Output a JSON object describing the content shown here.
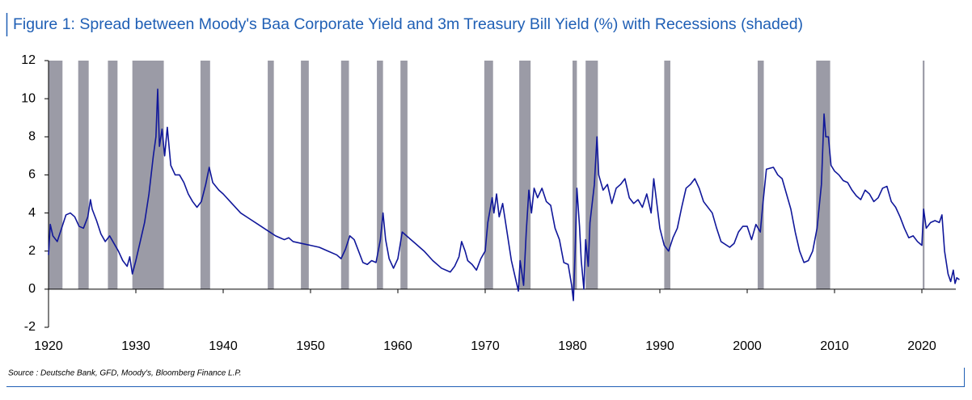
{
  "chart_data": {
    "type": "line",
    "title": "Figure 1: Spread between Moody's Baa Corporate Yield and 3m Treasury Bill Yield (%) with Recessions (shaded)",
    "source": "Source : Deutsche Bank, GFD, Moody's, Bloomberg Finance L.P.",
    "color": "#10179a",
    "recession_color": "#9b9ba6",
    "xlim": [
      1920,
      2025
    ],
    "ylim": [
      -2,
      12
    ],
    "xticks": [
      1920,
      1930,
      1940,
      1950,
      1960,
      1970,
      1980,
      1990,
      2000,
      2010,
      2020
    ],
    "yticks": [
      -2,
      0,
      2,
      4,
      6,
      8,
      10,
      12
    ],
    "recessions": [
      [
        1920.0,
        1921.6
      ],
      [
        1923.4,
        1924.6
      ],
      [
        1926.8,
        1927.9
      ],
      [
        1929.6,
        1933.2
      ],
      [
        1937.4,
        1938.5
      ],
      [
        1945.1,
        1945.8
      ],
      [
        1948.9,
        1949.8
      ],
      [
        1953.5,
        1954.4
      ],
      [
        1957.6,
        1958.3
      ],
      [
        1960.3,
        1961.1
      ],
      [
        1969.9,
        1970.9
      ],
      [
        1973.9,
        1975.2
      ],
      [
        1980.0,
        1980.5
      ],
      [
        1981.5,
        1982.9
      ],
      [
        1990.5,
        1991.2
      ],
      [
        2001.2,
        2001.9
      ],
      [
        2007.9,
        2009.5
      ],
      [
        2020.1,
        2020.3
      ]
    ],
    "x": [
      1920,
      1920.2,
      1920.5,
      1921,
      1921.5,
      1922,
      1922.5,
      1923,
      1923.5,
      1924,
      1924.5,
      1924.8,
      1925,
      1925.5,
      1926,
      1926.5,
      1927,
      1927.5,
      1928,
      1928.5,
      1929,
      1929.3,
      1929.6,
      1930,
      1930.5,
      1931,
      1931.5,
      1932,
      1932.3,
      1932.5,
      1932.7,
      1933,
      1933.3,
      1933.6,
      1934,
      1934.5,
      1935,
      1935.5,
      1936,
      1936.5,
      1937,
      1937.5,
      1938,
      1938.4,
      1938.8,
      1939.5,
      1940,
      1941,
      1942,
      1943,
      1944,
      1945,
      1946,
      1946.5,
      1947,
      1947.5,
      1948,
      1949,
      1950,
      1951,
      1952,
      1953,
      1953.5,
      1954,
      1954.5,
      1955,
      1955.5,
      1956,
      1956.5,
      1957,
      1957.5,
      1958,
      1958.3,
      1958.6,
      1959,
      1959.5,
      1960,
      1960.5,
      1961,
      1962,
      1963,
      1964,
      1965,
      1966,
      1966.5,
      1967,
      1967.3,
      1967.7,
      1968,
      1968.5,
      1969,
      1969.5,
      1970,
      1970.3,
      1970.8,
      1971,
      1971.3,
      1971.6,
      1972,
      1972.5,
      1973,
      1973.5,
      1973.8,
      1974,
      1974.4,
      1974.7,
      1975,
      1975.3,
      1975.6,
      1976,
      1976.5,
      1977,
      1977.5,
      1978,
      1978.5,
      1979,
      1979.5,
      1979.9,
      1980.1,
      1980.3,
      1980.5,
      1980.8,
      1981,
      1981.3,
      1981.5,
      1981.8,
      1982,
      1982.5,
      1982.8,
      1983,
      1983.5,
      1984,
      1984.5,
      1985,
      1985.5,
      1986,
      1986.5,
      1987,
      1987.5,
      1988,
      1988.5,
      1989,
      1989.3,
      1989.6,
      1990,
      1990.5,
      1991,
      1991.5,
      1992,
      1992.5,
      1993,
      1993.5,
      1994,
      1994.5,
      1995,
      1996,
      1996.5,
      1997,
      1998,
      1998.5,
      1999,
      1999.5,
      2000,
      2000.5,
      2001,
      2001.5,
      2001.8,
      2002.2,
      2003,
      2003.5,
      2004,
      2004.5,
      2005,
      2005.5,
      2006,
      2006.5,
      2007,
      2007.5,
      2008,
      2008.5,
      2008.8,
      2009,
      2009.3,
      2009.6,
      2010,
      2010.5,
      2011,
      2011.5,
      2012,
      2012.5,
      2013,
      2013.5,
      2014,
      2014.5,
      2015,
      2015.5,
      2016,
      2016.5,
      2017,
      2017.5,
      2018,
      2018.5,
      2019,
      2019.5,
      2020,
      2020.2,
      2020.5,
      2021,
      2021.5,
      2022,
      2022.3,
      2022.6,
      2023,
      2023.3,
      2023.6,
      2023.8,
      2024,
      2024.3
    ],
    "values": [
      1.8,
      3.4,
      2.8,
      2.5,
      3.2,
      3.9,
      4.0,
      3.8,
      3.3,
      3.2,
      3.8,
      4.7,
      4.2,
      3.6,
      2.9,
      2.5,
      2.8,
      2.4,
      2.0,
      1.5,
      1.2,
      1.7,
      0.8,
      1.5,
      2.5,
      3.5,
      5.0,
      7.0,
      8.0,
      10.5,
      7.5,
      8.4,
      7.0,
      8.5,
      6.5,
      6.0,
      6.0,
      5.6,
      5.0,
      4.6,
      4.3,
      4.6,
      5.5,
      6.4,
      5.6,
      5.2,
      5.0,
      4.5,
      4.0,
      3.7,
      3.4,
      3.1,
      2.8,
      2.7,
      2.6,
      2.7,
      2.5,
      2.4,
      2.3,
      2.2,
      2.0,
      1.8,
      1.6,
      2.1,
      2.8,
      2.6,
      2.0,
      1.4,
      1.3,
      1.5,
      1.4,
      2.6,
      4.0,
      2.6,
      1.6,
      1.1,
      1.6,
      3.0,
      2.8,
      2.4,
      2.0,
      1.5,
      1.1,
      0.9,
      1.2,
      1.7,
      2.5,
      2.0,
      1.5,
      1.3,
      1.0,
      1.6,
      2.0,
      3.5,
      4.8,
      4.0,
      5.0,
      3.8,
      4.5,
      3.0,
      1.5,
      0.5,
      -0.1,
      1.5,
      0.2,
      3.0,
      5.2,
      4.0,
      5.3,
      4.8,
      5.3,
      4.6,
      4.4,
      3.2,
      2.6,
      1.4,
      1.3,
      0.2,
      -0.6,
      2.0,
      5.3,
      3.3,
      1.5,
      0.0,
      2.6,
      1.2,
      3.5,
      5.5,
      8.0,
      6.0,
      5.2,
      5.5,
      4.5,
      5.3,
      5.5,
      5.8,
      4.8,
      4.5,
      4.7,
      4.3,
      5.0,
      4.0,
      5.8,
      4.7,
      3.2,
      2.3,
      2.0,
      2.7,
      3.2,
      4.3,
      5.3,
      5.5,
      5.8,
      5.3,
      4.6,
      4.0,
      3.2,
      2.5,
      2.2,
      2.4,
      3.0,
      3.3,
      3.3,
      2.6,
      3.4,
      3.0,
      4.5,
      6.3,
      6.4,
      6.0,
      5.8,
      5.0,
      4.2,
      3.0,
      2.0,
      1.4,
      1.5,
      2.0,
      3.2,
      5.5,
      9.2,
      8.0,
      8.0,
      6.5,
      6.2,
      6.0,
      5.7,
      5.6,
      5.2,
      4.9,
      4.7,
      5.2,
      5.0,
      4.6,
      4.8,
      5.3,
      5.4,
      4.6,
      4.3,
      3.8,
      3.2,
      2.7,
      2.8,
      2.5,
      2.3,
      4.2,
      3.2,
      3.5,
      3.6,
      3.5,
      3.9,
      2.0,
      0.8,
      0.4,
      1.0,
      0.3,
      0.6,
      0.5
    ]
  }
}
